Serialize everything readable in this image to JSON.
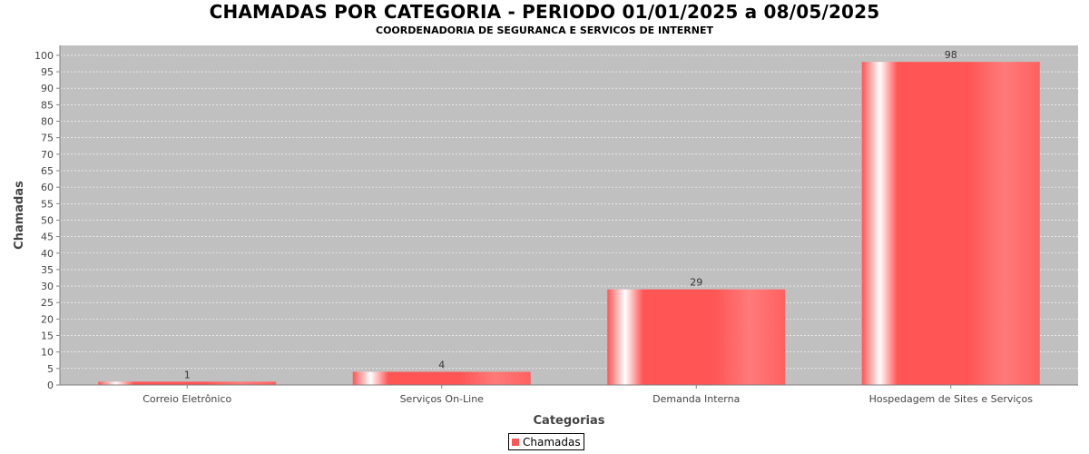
{
  "chart_data": {
    "type": "bar",
    "title": "CHAMADAS POR CATEGORIA - PERIODO 01/01/2025 a 08/05/2025",
    "subtitle": "COORDENADORIA DE SEGURANCA E SERVICOS DE INTERNET",
    "xlabel": "Categorias",
    "ylabel": "Chamadas",
    "categories": [
      "Correio Eletrônico",
      "Serviços On-Line",
      "Demanda Interna",
      "Hospedagem de Sites e Serviços"
    ],
    "series": [
      {
        "name": "Chamadas",
        "values": [
          1,
          4,
          29,
          98
        ]
      }
    ],
    "data_labels": [
      "1",
      "4",
      "29",
      "98"
    ],
    "ylim": [
      0,
      103
    ],
    "y_ticks": [
      0,
      5,
      10,
      15,
      20,
      25,
      30,
      35,
      40,
      45,
      50,
      55,
      60,
      65,
      70,
      75,
      80,
      85,
      90,
      95,
      100
    ],
    "grid": true,
    "legend_position": "bottom-center",
    "colors": {
      "bar": "#ff5555",
      "plot_background": "#c0c0c0",
      "gridline": "#ffffff"
    }
  }
}
